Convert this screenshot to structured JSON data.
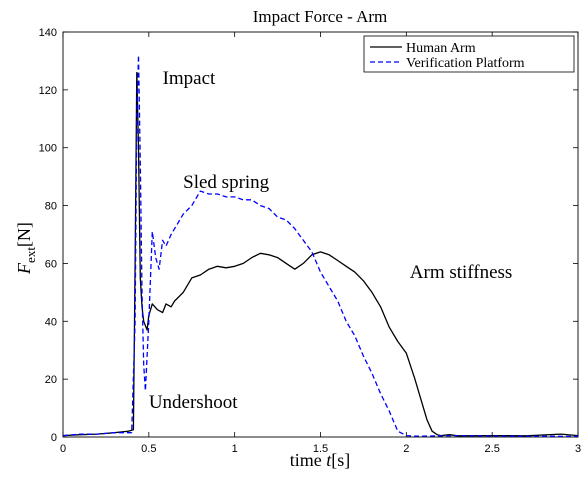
{
  "chart_data": {
    "type": "line",
    "title": "Impact Force - Arm",
    "xlabel_prefix": "time ",
    "xlabel_var": "t",
    "xlabel_unit": "[s]",
    "ylabel_var": "F",
    "ylabel_sub": "ext",
    "ylabel_unit": "[N]",
    "xlim": [
      0,
      3
    ],
    "ylim": [
      0,
      140
    ],
    "xticks": [
      0,
      0.5,
      1,
      1.5,
      2,
      2.5,
      3
    ],
    "xtick_labels": [
      "0",
      "0.5",
      "1",
      "1.5",
      "2",
      "2.5",
      "3"
    ],
    "yticks": [
      0,
      20,
      40,
      60,
      80,
      100,
      120,
      140
    ],
    "ytick_labels": [
      "0",
      "20",
      "40",
      "60",
      "80",
      "100",
      "120",
      "140"
    ],
    "grid": false,
    "legend_position": "top-right",
    "series": [
      {
        "name": "Human Arm",
        "color": "#000000",
        "dash": "solid",
        "x": [
          0,
          0.1,
          0.2,
          0.3,
          0.38,
          0.41,
          0.42,
          0.43,
          0.44,
          0.45,
          0.46,
          0.47,
          0.49,
          0.5,
          0.52,
          0.55,
          0.58,
          0.6,
          0.63,
          0.65,
          0.7,
          0.75,
          0.8,
          0.85,
          0.9,
          0.95,
          1.0,
          1.05,
          1.1,
          1.15,
          1.2,
          1.25,
          1.3,
          1.35,
          1.4,
          1.45,
          1.5,
          1.55,
          1.6,
          1.65,
          1.7,
          1.75,
          1.8,
          1.85,
          1.9,
          1.95,
          2.0,
          2.05,
          2.1,
          2.12,
          2.15,
          2.18,
          2.2,
          2.25,
          2.3,
          2.5,
          2.7,
          2.9,
          3.0
        ],
        "y": [
          0.5,
          0.8,
          1.0,
          1.5,
          2.0,
          2.5,
          60,
          126,
          100,
          55,
          45,
          40,
          37,
          42,
          46,
          44,
          43,
          46,
          45,
          47,
          50,
          55,
          56,
          58,
          59,
          58.5,
          59,
          60,
          62,
          63.5,
          63,
          62,
          60,
          58,
          60,
          63,
          64,
          63,
          61,
          59,
          57,
          54,
          50,
          45,
          38,
          33,
          29,
          20,
          10,
          6,
          2,
          0.8,
          0.5,
          0.8,
          0.4,
          0.5,
          0.4,
          1.0,
          0.5
        ]
      },
      {
        "name": "Verification Platform",
        "color": "#0000ff",
        "dash": "dashed",
        "x": [
          0,
          0.1,
          0.2,
          0.3,
          0.4,
          0.42,
          0.43,
          0.44,
          0.45,
          0.46,
          0.47,
          0.48,
          0.5,
          0.52,
          0.54,
          0.56,
          0.58,
          0.6,
          0.63,
          0.66,
          0.7,
          0.75,
          0.8,
          0.85,
          0.9,
          0.95,
          1.0,
          1.05,
          1.1,
          1.15,
          1.2,
          1.25,
          1.3,
          1.35,
          1.4,
          1.45,
          1.5,
          1.55,
          1.6,
          1.65,
          1.7,
          1.75,
          1.8,
          1.85,
          1.9,
          1.95,
          2.0,
          2.05,
          2.1,
          2.3,
          2.5,
          3.0
        ],
        "y": [
          0.5,
          1.0,
          1.0,
          1.5,
          1.5,
          40,
          110,
          132,
          95,
          50,
          25,
          16,
          40,
          71,
          62,
          58,
          68,
          66,
          70,
          73,
          77,
          80,
          85,
          84,
          84,
          83,
          83,
          82,
          82,
          80,
          79,
          76,
          75,
          72,
          68,
          64,
          57,
          52,
          47,
          40,
          35,
          28,
          22,
          15,
          9,
          2,
          0.5,
          0.3,
          0.3,
          0.5,
          0.3,
          0.2
        ]
      }
    ],
    "annotations": [
      {
        "text": "Impact",
        "x": 0.58,
        "y": 122
      },
      {
        "text": "Sled spring",
        "x": 0.7,
        "y": 86
      },
      {
        "text": "Arm stiffness",
        "x": 2.02,
        "y": 55
      },
      {
        "text": "Undershoot",
        "x": 0.5,
        "y": 10
      }
    ]
  }
}
